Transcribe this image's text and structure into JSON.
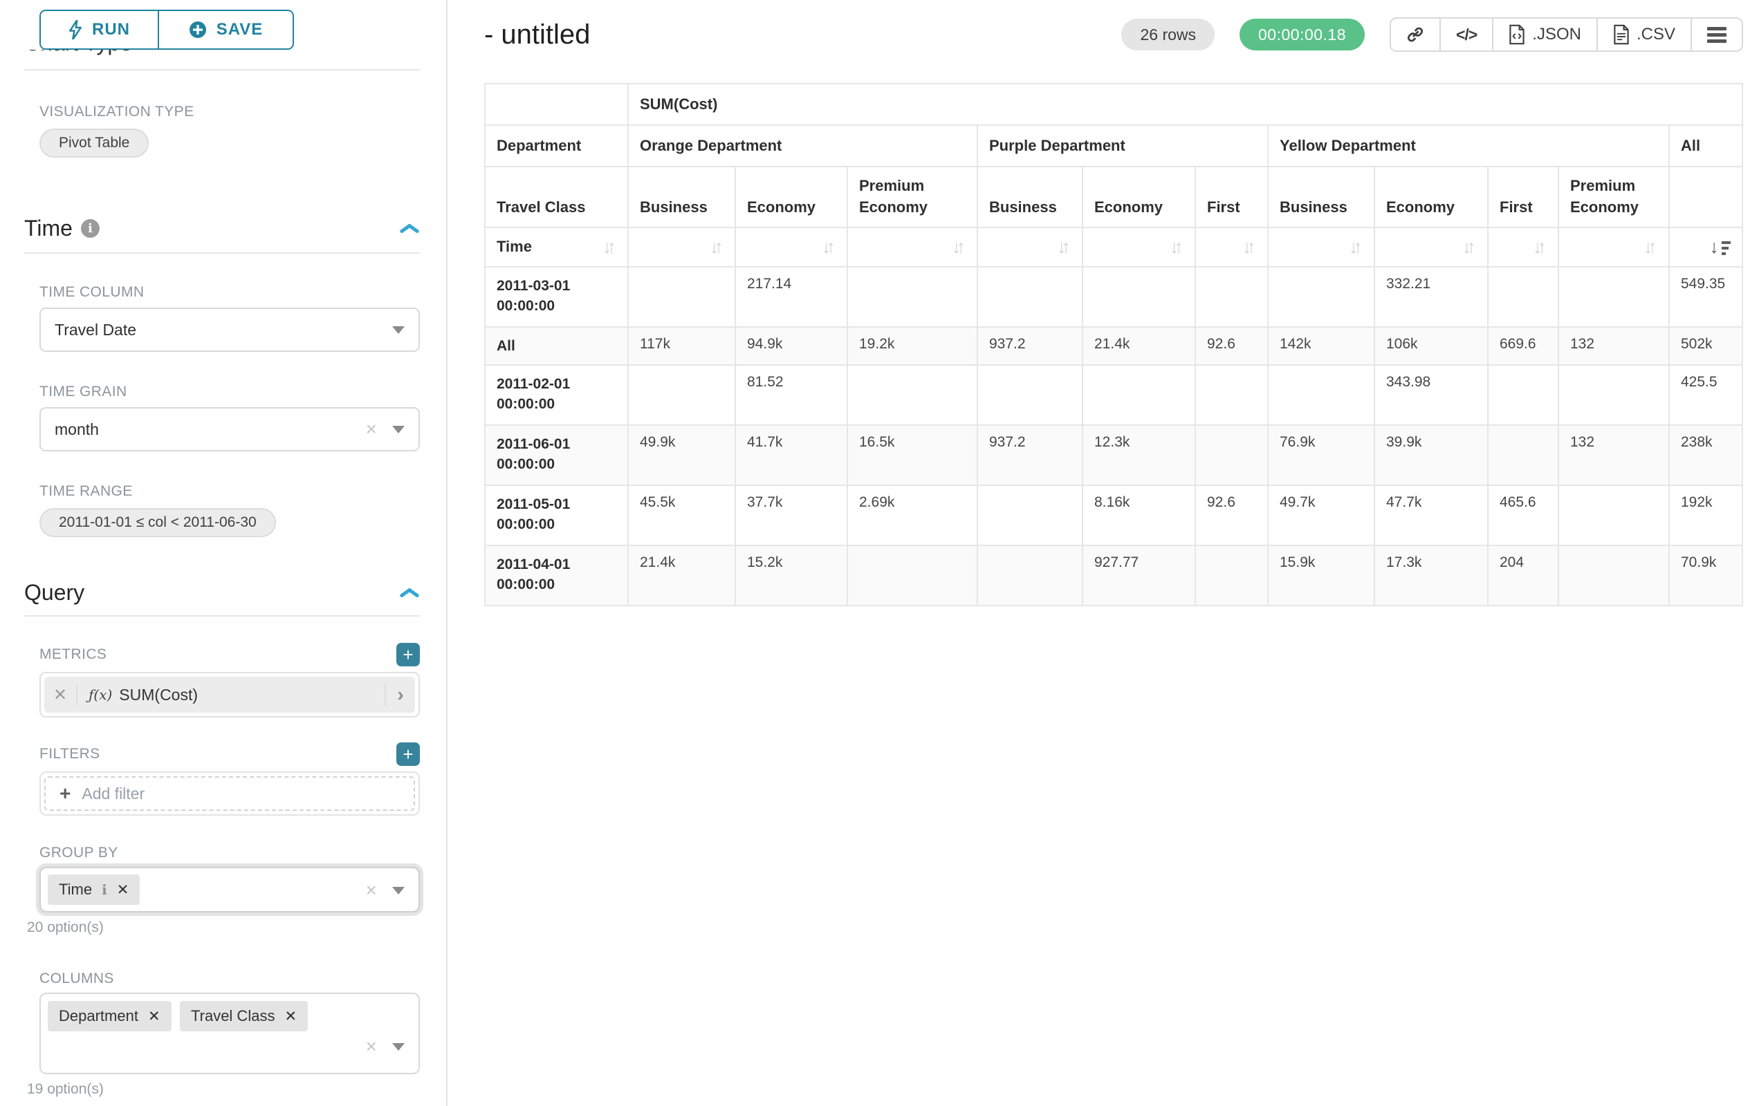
{
  "colors": {
    "accent": "#20839e",
    "plus_button": "#38839c",
    "caret_blue": "#36a6d3",
    "success_green": "#5ac189"
  },
  "icons": {
    "close": "✕",
    "clear": "×",
    "plus": "+",
    "info": "i",
    "chevron_right": "›",
    "code": "</>",
    "sort_inactive": "↓↑",
    "sort_desc_arrow": "↓"
  },
  "toolbar": {
    "run_label": "RUN",
    "save_label": "SAVE"
  },
  "sidebar": {
    "clipped_section_title": "Chart Type",
    "visualization": {
      "label": "VISUALIZATION TYPE",
      "value": "Pivot Table"
    },
    "time_section": {
      "title": "Time",
      "time_column": {
        "label": "TIME COLUMN",
        "value": "Travel Date"
      },
      "time_grain": {
        "label": "TIME GRAIN",
        "value": "month"
      },
      "time_range": {
        "label": "TIME RANGE",
        "value": "2011-01-01 ≤ col < 2011-06-30"
      }
    },
    "query_section": {
      "title": "Query",
      "metrics": {
        "label": "METRICS",
        "items": [
          {
            "prefix": "ƒ(x)",
            "name": "SUM(Cost)"
          }
        ]
      },
      "filters": {
        "label": "FILTERS",
        "placeholder": "Add filter"
      },
      "group_by": {
        "label": "GROUP BY",
        "tags": [
          "Time"
        ],
        "hint": "20 option(s)"
      },
      "columns": {
        "label": "COLUMNS",
        "tags": [
          "Department",
          "Travel Class"
        ],
        "hint": "19 option(s)"
      }
    }
  },
  "header": {
    "title": "- untitled",
    "row_count": "26 rows",
    "timer": "00:00:00.18",
    "json_label": ".JSON",
    "csv_label": ".CSV"
  },
  "chart_data": {
    "type": "table",
    "metric_header": "SUM(Cost)",
    "column_dimension": "Department",
    "sub_dimension": "Travel Class",
    "row_dimension": "Time",
    "col_groups": [
      {
        "name": "Orange Department",
        "children": [
          "Business",
          "Economy",
          "Premium Economy"
        ]
      },
      {
        "name": "Purple Department",
        "children": [
          "Business",
          "Economy",
          "First"
        ]
      },
      {
        "name": "Yellow Department",
        "children": [
          "Business",
          "Economy",
          "First",
          "Premium Economy"
        ]
      },
      {
        "name": "All",
        "children": [
          ""
        ]
      }
    ],
    "sort": {
      "column_index": 10,
      "direction": "desc"
    },
    "rows": [
      {
        "label": "2011-03-01 00:00:00",
        "values": [
          "",
          "217.14",
          "",
          "",
          "",
          "",
          "",
          "332.21",
          "",
          "",
          "549.35"
        ]
      },
      {
        "label": "All",
        "values": [
          "117k",
          "94.9k",
          "19.2k",
          "937.2",
          "21.4k",
          "92.6",
          "142k",
          "106k",
          "669.6",
          "132",
          "502k"
        ]
      },
      {
        "label": "2011-02-01 00:00:00",
        "values": [
          "",
          "81.52",
          "",
          "",
          "",
          "",
          "",
          "343.98",
          "",
          "",
          "425.5"
        ]
      },
      {
        "label": "2011-06-01 00:00:00",
        "values": [
          "49.9k",
          "41.7k",
          "16.5k",
          "937.2",
          "12.3k",
          "",
          "76.9k",
          "39.9k",
          "",
          "132",
          "238k"
        ]
      },
      {
        "label": "2011-05-01 00:00:00",
        "values": [
          "45.5k",
          "37.7k",
          "2.69k",
          "",
          "8.16k",
          "92.6",
          "49.7k",
          "47.7k",
          "465.6",
          "",
          "192k"
        ]
      },
      {
        "label": "2011-04-01 00:00:00",
        "values": [
          "21.4k",
          "15.2k",
          "",
          "",
          "927.77",
          "",
          "15.9k",
          "17.3k",
          "204",
          "",
          "70.9k"
        ]
      }
    ]
  }
}
